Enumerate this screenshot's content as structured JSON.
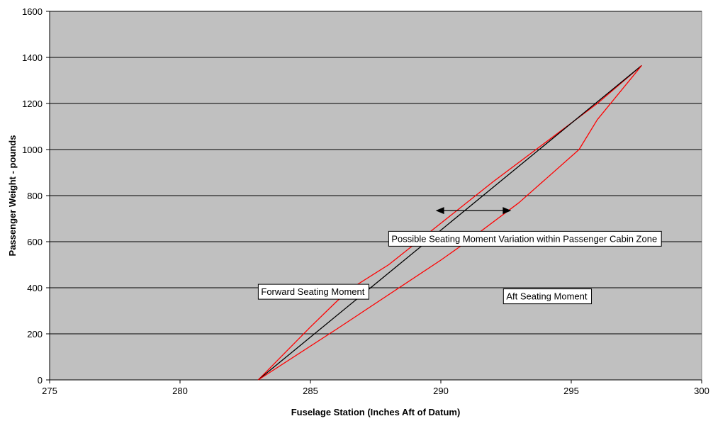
{
  "chart_data": {
    "type": "line",
    "title": "",
    "xlabel": "Fuselage Station (Inches Aft of Datum)",
    "ylabel": "Passenger Weight - pounds",
    "xlim": [
      275,
      300
    ],
    "ylim": [
      0,
      1600
    ],
    "xticks": [
      275,
      280,
      285,
      290,
      295,
      300
    ],
    "yticks": [
      0,
      200,
      400,
      600,
      800,
      1000,
      1200,
      1400,
      1600
    ],
    "grid": "horizontal",
    "colors": {
      "plot_bg": "#c0c0c0",
      "grid": "#000000",
      "bounds": "#ff0000",
      "center": "#000000"
    },
    "series": [
      {
        "x": [
          283.0,
          285.0,
          286.0,
          286.6,
          288.0,
          290.0,
          292.0,
          294.0,
          296.0,
          297.7
        ],
        "y": [
          0,
          230,
          340,
          400,
          500,
          680,
          860,
          1030,
          1200,
          1365
        ],
        "color": "#ff0000"
      },
      {
        "x": [
          283.0,
          297.7
        ],
        "y": [
          0,
          1365
        ],
        "color": "#000000"
      },
      {
        "x": [
          283.0,
          286.0,
          290.0,
          291.0,
          293.0,
          294.0,
          295.3,
          296.0,
          297.7
        ],
        "y": [
          0,
          220,
          520,
          600,
          770,
          870,
          1000,
          1130,
          1365
        ],
        "color": "#ff0000"
      }
    ],
    "annotations": [
      {
        "text": "Possible Seating Moment Variation within Passenger Cabin Zone",
        "x": 288.0,
        "y": 645
      },
      {
        "text": "Forward Seating Moment",
        "x": 283.0,
        "y": 415
      },
      {
        "text": "Aft Seating Moment",
        "x": 292.4,
        "y": 395
      }
    ],
    "arrow": {
      "x": [
        289.8,
        292.7
      ],
      "y": 735,
      "style": "double-headed"
    }
  }
}
